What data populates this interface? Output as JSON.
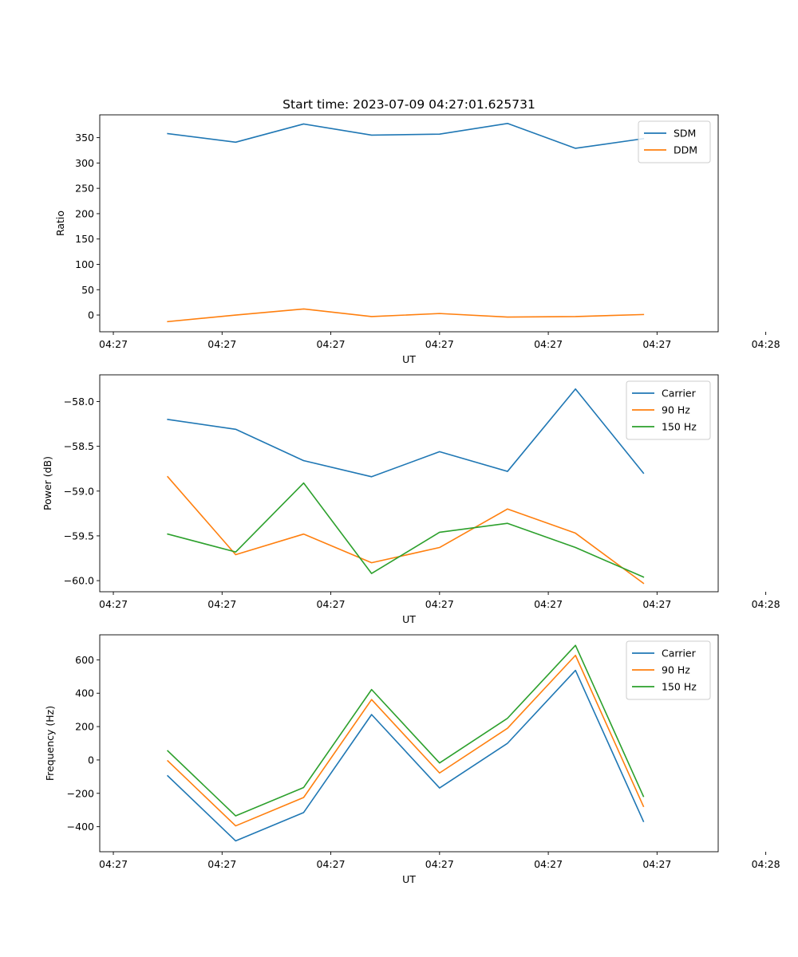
{
  "title": "Start time: 2023-07-09 04:27:01.625731",
  "colors": {
    "blue": "#1f77b4",
    "orange": "#ff7f0e",
    "green": "#2ca02c",
    "axis": "#000000",
    "legend_border": "#cccccc"
  },
  "chart_data": [
    {
      "type": "line",
      "xlabel": "UT",
      "ylabel": "Ratio",
      "xlim": [
        0,
        9.1
      ],
      "ylim": [
        -33,
        395
      ],
      "x_ticks": [
        0.2,
        1.8,
        3.4,
        5.0,
        6.6,
        8.2,
        9.8
      ],
      "x_tick_labels": [
        "04:27",
        "04:27",
        "04:27",
        "04:27",
        "04:27",
        "04:27",
        "04:28"
      ],
      "y_ticks": [
        0,
        50,
        100,
        150,
        200,
        250,
        300,
        350
      ],
      "y_tick_labels": [
        "0",
        "50",
        "100",
        "150",
        "200",
        "250",
        "300",
        "350"
      ],
      "legend_position": "top-right",
      "x": [
        1,
        2,
        3,
        4,
        5,
        6,
        7,
        8
      ],
      "series": [
        {
          "name": "SDM",
          "color": "#1f77b4",
          "values": [
            358,
            341,
            377,
            355,
            357,
            378,
            329,
            348
          ]
        },
        {
          "name": "DDM",
          "color": "#ff7f0e",
          "values": [
            -13,
            0,
            12,
            -3,
            3,
            -4,
            -3,
            1
          ]
        }
      ]
    },
    {
      "type": "line",
      "xlabel": "UT",
      "ylabel": "Power (dB)",
      "xlim": [
        0,
        9.1
      ],
      "ylim": [
        -60.124,
        -57.702
      ],
      "x_ticks": [
        0.2,
        1.8,
        3.4,
        5.0,
        6.6,
        8.2,
        9.8
      ],
      "x_tick_labels": [
        "04:27",
        "04:27",
        "04:27",
        "04:27",
        "04:27",
        "04:27",
        "04:28"
      ],
      "y_ticks": [
        -58.0,
        -58.5,
        -59.0,
        -59.5,
        -60.0
      ],
      "y_tick_labels": [
        "−58.0",
        "−58.5",
        "−59.0",
        "−59.5",
        "−60.0"
      ],
      "legend_position": "top-right",
      "x": [
        1,
        2,
        3,
        4,
        5,
        6,
        7,
        8
      ],
      "series": [
        {
          "name": "Carrier",
          "color": "#1f77b4",
          "values": [
            -58.2,
            -58.31,
            -58.66,
            -58.84,
            -58.56,
            -58.78,
            -57.86,
            -58.8
          ]
        },
        {
          "name": "90 Hz",
          "color": "#ff7f0e",
          "values": [
            -58.84,
            -59.71,
            -59.48,
            -59.8,
            -59.63,
            -59.2,
            -59.47,
            -60.03
          ]
        },
        {
          "name": "150 Hz",
          "color": "#2ca02c",
          "values": [
            -59.48,
            -59.68,
            -58.91,
            -59.92,
            -59.46,
            -59.36,
            -59.63,
            -59.96
          ]
        }
      ]
    },
    {
      "type": "line",
      "xlabel": "UT",
      "ylabel": "Frequency (Hz)",
      "xlim": [
        0,
        9.1
      ],
      "ylim": [
        -550,
        750
      ],
      "x_ticks": [
        0.2,
        1.8,
        3.4,
        5.0,
        6.6,
        8.2,
        9.8
      ],
      "x_tick_labels": [
        "04:27",
        "04:27",
        "04:27",
        "04:27",
        "04:27",
        "04:27",
        "04:28"
      ],
      "y_ticks": [
        -400,
        -200,
        0,
        200,
        400,
        600
      ],
      "y_tick_labels": [
        "−400",
        "−200",
        "0",
        "200",
        "400",
        "600"
      ],
      "legend_position": "top-right",
      "x": [
        1,
        2,
        3,
        4,
        5,
        6,
        7,
        8
      ],
      "series": [
        {
          "name": "Carrier",
          "color": "#1f77b4",
          "values": [
            -95,
            -485,
            -315,
            272,
            -168,
            100,
            537,
            -368
          ]
        },
        {
          "name": "90 Hz",
          "color": "#ff7f0e",
          "values": [
            -5,
            -395,
            -225,
            362,
            -78,
            190,
            627,
            -278
          ]
        },
        {
          "name": "150 Hz",
          "color": "#2ca02c",
          "values": [
            55,
            -335,
            -165,
            422,
            -18,
            250,
            687,
            -218
          ]
        }
      ]
    }
  ]
}
